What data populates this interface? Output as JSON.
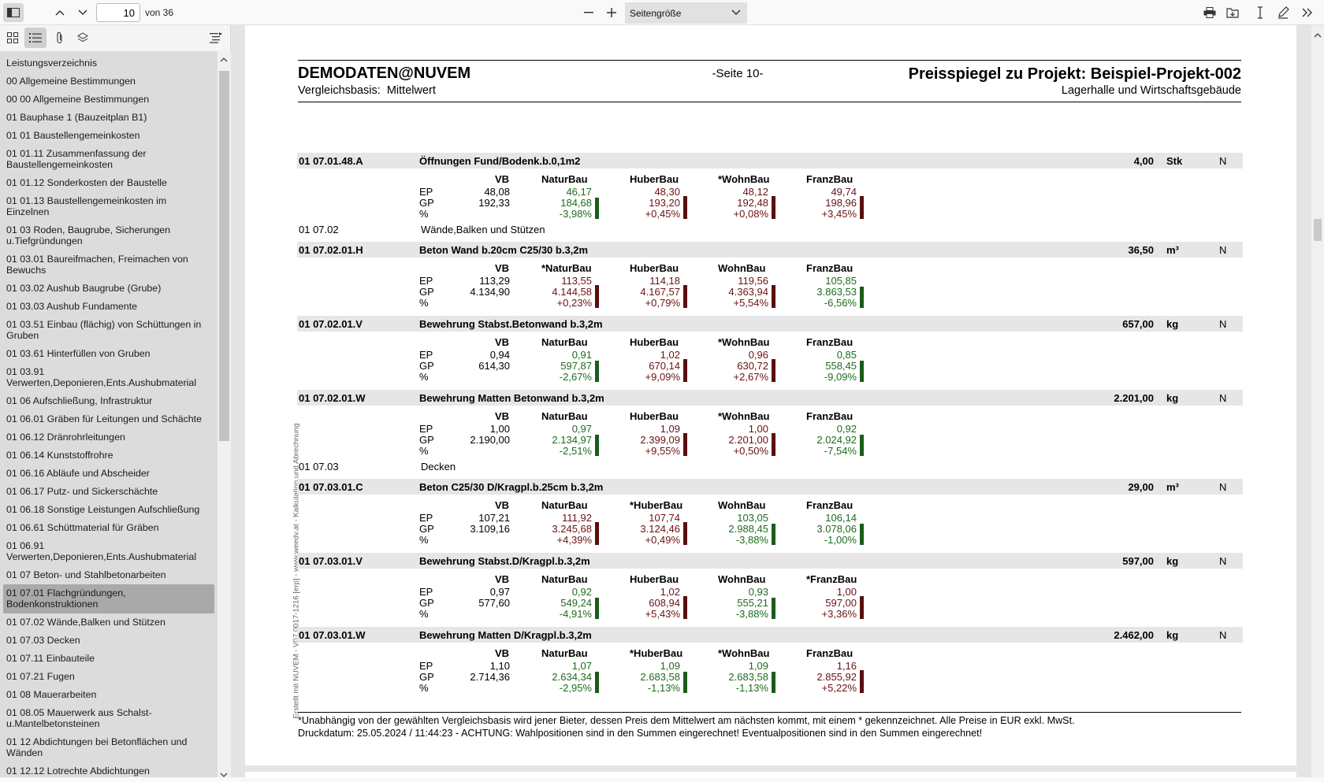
{
  "toolbar": {
    "page_current": "10",
    "page_of": "von 36",
    "zoom": "Seitengröße"
  },
  "outline": [
    {
      "label": "Leistungsverzeichnis"
    },
    {
      "label": "00 Allgemeine Bestimmungen"
    },
    {
      "label": "00 00 Allgemeine Bestimmungen"
    },
    {
      "label": "01 Bauphase 1 (Bauzeitplan B1)"
    },
    {
      "label": "01 01 Baustellengemeinkosten"
    },
    {
      "label": "01 01.11 Zusammenfassung der Baustellengemeinkosten"
    },
    {
      "label": "01 01.12 Sonderkosten der Baustelle"
    },
    {
      "label": "01 01.13 Baustellengemeinkosten im Einzelnen"
    },
    {
      "label": "01 03 Roden, Baugrube, Sicherungen u.Tiefgründungen"
    },
    {
      "label": "01 03.01 Baureifmachen, Freimachen von Bewuchs"
    },
    {
      "label": "01 03.02 Aushub Baugrube (Grube)"
    },
    {
      "label": "01 03.03 Aushub Fundamente"
    },
    {
      "label": "01 03.51 Einbau (flächig) von Schüttungen in Gruben"
    },
    {
      "label": "01 03.61 Hinterfüllen von Gruben"
    },
    {
      "label": "01 03.91 Verwerten,Deponieren,Ents.Aushubmaterial"
    },
    {
      "label": "01 06 Aufschließung, Infrastruktur"
    },
    {
      "label": "01 06.01 Gräben für Leitungen und Schächte"
    },
    {
      "label": "01 06.12 Dränrohrleitungen"
    },
    {
      "label": "01 06.14 Kunststoffrohre"
    },
    {
      "label": "01 06.16 Abläufe und Abscheider"
    },
    {
      "label": "01 06.17 Putz- und Sickerschächte"
    },
    {
      "label": "01 06.18 Sonstige Leistungen Aufschließung"
    },
    {
      "label": "01 06.61 Schüttmaterial für Gräben"
    },
    {
      "label": "01 06.91 Verwerten,Deponieren,Ents.Aushubmaterial"
    },
    {
      "label": "01 07 Beton- und Stahlbetonarbeiten"
    },
    {
      "label": "01 07.01 Flachgründungen, Bodenkonstruktionen",
      "selected": true
    },
    {
      "label": "01 07.02 Wände,Balken und Stützen"
    },
    {
      "label": "01 07.03 Decken"
    },
    {
      "label": "01 07.11 Einbauteile"
    },
    {
      "label": "01 07.21 Fugen"
    },
    {
      "label": "01 08 Mauerarbeiten"
    },
    {
      "label": "01 08.05 Mauerwerk aus Schalst-u.Mantelbetonsteinen"
    },
    {
      "label": "01 12 Abdichtungen bei Betonflächen und Wänden"
    },
    {
      "label": "01 12.12 Lotrechte Abdichtungen"
    }
  ],
  "doc": {
    "company": "DEMODATEN@NUVEM",
    "basis_label": "Vergleichsbasis:",
    "basis_value": "Mittelwert",
    "page_label": "-Seite 10-",
    "title": "Preisspiegel zu Projekt: Beispiel-Projekt-002",
    "subtitle": "Lagerhalle und Wirtschaftsgebäude",
    "side_text": "Erstellt mit NUVEM - V07.0017-1216 [erp] - www.weedv.at - Kalkulation und Abrechnung",
    "footnote": "*Unabhängig von der gewählten Vergleichsbasis wird jener Bieter, dessen Preis dem Mittelwert am nächsten kommt, mit einem * gekennzeichnet. Alle Preise in EUR exkl. MwSt.",
    "print_line": "Druckdatum: 25.05.2024 / 11:44:23  -  ACHTUNG: Wahlpositionen sind in den Summen eingerechnet! Eventualpositionen sind in den Summen eingerechnet!",
    "row_labels": {
      "ep": "EP",
      "gp": "GP",
      "pct": "%"
    },
    "colors": {
      "green": "#1e6b1e",
      "red": "#6b1212",
      "bar_green": "#1a5c1a",
      "bar_red": "#5a0e0e"
    },
    "groups": [
      {
        "code": "01 07.02",
        "title": "Wände,Balken und Stützen"
      },
      {
        "code": "01 07.03",
        "title": "Decken"
      }
    ],
    "positions": [
      {
        "code": "01 07.01.48.A",
        "title": "Öffnungen Fund/Bodenk.b.0,1m2",
        "qty": "4,00",
        "unit": "Stk",
        "n": "N",
        "vb": {
          "label": "VB",
          "ep": "48,08",
          "gp": "192,33"
        },
        "bidders": [
          {
            "name": "NaturBau",
            "ep": "46,17",
            "gp": "184,68",
            "pct": "-3,98%",
            "trend": "green"
          },
          {
            "name": "HuberBau",
            "ep": "48,30",
            "gp": "193,20",
            "pct": "+0,45%",
            "trend": "red"
          },
          {
            "name": "*WohnBau",
            "ep": "48,12",
            "gp": "192,48",
            "pct": "+0,08%",
            "trend": "red"
          },
          {
            "name": "FranzBau",
            "ep": "49,74",
            "gp": "198,96",
            "pct": "+3,45%",
            "trend": "red"
          }
        ]
      },
      {
        "code": "01 07.02.01.H",
        "title": "Beton Wand b.20cm C25/30 b.3,2m",
        "qty": "36,50",
        "unit": "m³",
        "n": "N",
        "vb": {
          "label": "VB",
          "ep": "113,29",
          "gp": "4.134,90"
        },
        "bidders": [
          {
            "name": "*NaturBau",
            "ep": "113,55",
            "gp": "4.144,58",
            "pct": "+0,23%",
            "trend": "red"
          },
          {
            "name": "HuberBau",
            "ep": "114,18",
            "gp": "4.167,57",
            "pct": "+0,79%",
            "trend": "red"
          },
          {
            "name": "WohnBau",
            "ep": "119,56",
            "gp": "4.363,94",
            "pct": "+5,54%",
            "trend": "red"
          },
          {
            "name": "FranzBau",
            "ep": "105,85",
            "gp": "3.863,53",
            "pct": "-6,56%",
            "trend": "green"
          }
        ]
      },
      {
        "code": "01 07.02.01.V",
        "title": "Bewehrung Stabst.Betonwand b.3,2m",
        "qty": "657,00",
        "unit": "kg",
        "n": "N",
        "vb": {
          "label": "VB",
          "ep": "0,94",
          "gp": "614,30"
        },
        "bidders": [
          {
            "name": "NaturBau",
            "ep": "0,91",
            "gp": "597,87",
            "pct": "-2,67%",
            "trend": "green"
          },
          {
            "name": "HuberBau",
            "ep": "1,02",
            "gp": "670,14",
            "pct": "+9,09%",
            "trend": "red"
          },
          {
            "name": "*WohnBau",
            "ep": "0,96",
            "gp": "630,72",
            "pct": "+2,67%",
            "trend": "red"
          },
          {
            "name": "FranzBau",
            "ep": "0,85",
            "gp": "558,45",
            "pct": "-9,09%",
            "trend": "green"
          }
        ]
      },
      {
        "code": "01 07.02.01.W",
        "title": "Bewehrung Matten Betonwand b.3,2m",
        "qty": "2.201,00",
        "unit": "kg",
        "n": "N",
        "vb": {
          "label": "VB",
          "ep": "1,00",
          "gp": "2.190,00"
        },
        "bidders": [
          {
            "name": "NaturBau",
            "ep": "0,97",
            "gp": "2.134,97",
            "pct": "-2,51%",
            "trend": "green"
          },
          {
            "name": "HuberBau",
            "ep": "1,09",
            "gp": "2.399,09",
            "pct": "+9,55%",
            "trend": "red"
          },
          {
            "name": "*WohnBau",
            "ep": "1,00",
            "gp": "2.201,00",
            "pct": "+0,50%",
            "trend": "red"
          },
          {
            "name": "FranzBau",
            "ep": "0,92",
            "gp": "2.024,92",
            "pct": "-7,54%",
            "trend": "green"
          }
        ]
      },
      {
        "code": "01 07.03.01.C",
        "title": "Beton C25/30 D/Kragpl.b.25cm b.3,2m",
        "qty": "29,00",
        "unit": "m³",
        "n": "N",
        "vb": {
          "label": "VB",
          "ep": "107,21",
          "gp": "3.109,16"
        },
        "bidders": [
          {
            "name": "NaturBau",
            "ep": "111,92",
            "gp": "3.245,68",
            "pct": "+4,39%",
            "trend": "red"
          },
          {
            "name": "*HuberBau",
            "ep": "107,74",
            "gp": "3.124,46",
            "pct": "+0,49%",
            "trend": "red"
          },
          {
            "name": "WohnBau",
            "ep": "103,05",
            "gp": "2.988,45",
            "pct": "-3,88%",
            "trend": "green"
          },
          {
            "name": "FranzBau",
            "ep": "106,14",
            "gp": "3.078,06",
            "pct": "-1,00%",
            "trend": "green"
          }
        ]
      },
      {
        "code": "01 07.03.01.V",
        "title": "Bewehrung Stabst.D/Kragpl.b.3,2m",
        "qty": "597,00",
        "unit": "kg",
        "n": "N",
        "vb": {
          "label": "VB",
          "ep": "0,97",
          "gp": "577,60"
        },
        "bidders": [
          {
            "name": "NaturBau",
            "ep": "0,92",
            "gp": "549,24",
            "pct": "-4,91%",
            "trend": "green"
          },
          {
            "name": "HuberBau",
            "ep": "1,02",
            "gp": "608,94",
            "pct": "+5,43%",
            "trend": "red"
          },
          {
            "name": "WohnBau",
            "ep": "0,93",
            "gp": "555,21",
            "pct": "-3,88%",
            "trend": "green"
          },
          {
            "name": "*FranzBau",
            "ep": "1,00",
            "gp": "597,00",
            "pct": "+3,36%",
            "trend": "red"
          }
        ]
      },
      {
        "code": "01 07.03.01.W",
        "title": "Bewehrung Matten D/Kragpl.b.3,2m",
        "qty": "2.462,00",
        "unit": "kg",
        "n": "N",
        "vb": {
          "label": "VB",
          "ep": "1,10",
          "gp": "2.714,36"
        },
        "bidders": [
          {
            "name": "NaturBau",
            "ep": "1,07",
            "gp": "2.634,34",
            "pct": "-2,95%",
            "trend": "green"
          },
          {
            "name": "*HuberBau",
            "ep": "1,09",
            "gp": "2.683,58",
            "pct": "-1,13%",
            "trend": "green"
          },
          {
            "name": "*WohnBau",
            "ep": "1,09",
            "gp": "2.683,58",
            "pct": "-1,13%",
            "trend": "green"
          },
          {
            "name": "FranzBau",
            "ep": "1,16",
            "gp": "2.855,92",
            "pct": "+5,22%",
            "trend": "red"
          }
        ]
      }
    ]
  }
}
